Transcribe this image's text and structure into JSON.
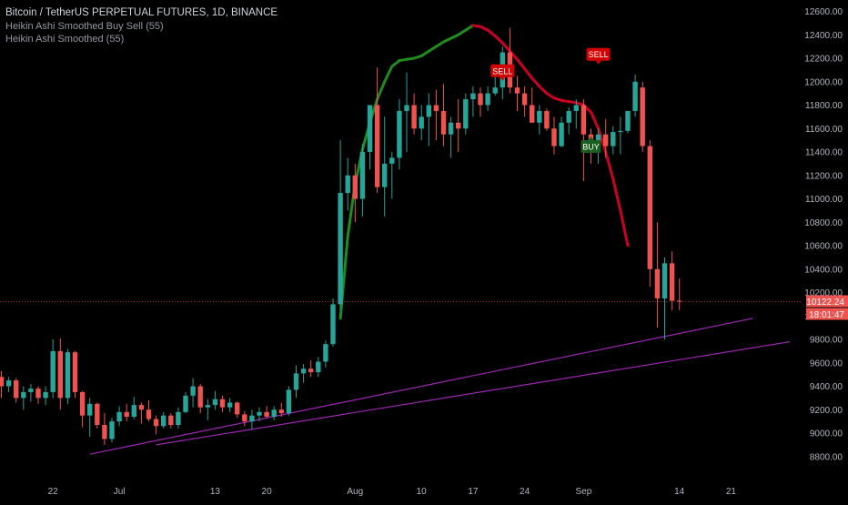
{
  "legend": {
    "title": "Bitcoin / TetherUS PERPETUAL FUTURES, 1D, BINANCE",
    "indicator1": "Heikin Ashi Smoothed Buy Sell  (55)",
    "indicator2": "Heikin Ashi Smoothed (55)"
  },
  "colors": {
    "background": "#000000",
    "up": "#26a69a",
    "down": "#ef5350",
    "ha_up": "#1e8c1e",
    "ha_down": "#cc0022",
    "trendline": "#9c27b0",
    "axis_text": "#b2b5be",
    "price_tag": "#ef5350",
    "sell_signal": "#d50000",
    "buy_signal": "#1b5e20"
  },
  "chart_data": {
    "type": "candlestick",
    "title": "Bitcoin / TetherUS PERPETUAL FUTURES, 1D, BINANCE",
    "ylim": [
      8600,
      12650
    ],
    "y_ticks": [
      8800,
      9000,
      9200,
      9400,
      9600,
      9800,
      10000,
      10200,
      10400,
      10600,
      10800,
      11000,
      11200,
      11400,
      11600,
      11800,
      12000,
      12200,
      12400,
      12600
    ],
    "y_tick_labels": [
      "8800.00",
      "9000.00",
      "9200.00",
      "9400.00",
      "9600.00",
      "9800.00",
      "10000.00",
      "10200.00",
      "10400.00",
      "10600.00",
      "10800.00",
      "11000.00",
      "11200.00",
      "11400.00",
      "11600.00",
      "11800.00",
      "12000.00",
      "12200.00",
      "12400.00",
      "12600.00"
    ],
    "x_ticks": [
      {
        "label": "22",
        "index": 7
      },
      {
        "label": "Jul",
        "index": 16
      },
      {
        "label": "13",
        "index": 29
      },
      {
        "label": "20",
        "index": 36
      },
      {
        "label": "Aug",
        "index": 48
      },
      {
        "label": "10",
        "index": 57
      },
      {
        "label": "17",
        "index": 64
      },
      {
        "label": "24",
        "index": 71
      },
      {
        "label": "Sep",
        "index": 79
      },
      {
        "label": "14",
        "index": 92
      },
      {
        "label": "21",
        "index": 99
      }
    ],
    "candles": [
      [
        9480,
        9530,
        9300,
        9400
      ],
      [
        9400,
        9480,
        9350,
        9450
      ],
      [
        9450,
        9470,
        9260,
        9300
      ],
      [
        9300,
        9400,
        9200,
        9350
      ],
      [
        9350,
        9420,
        9270,
        9380
      ],
      [
        9380,
        9400,
        9250,
        9300
      ],
      [
        9300,
        9400,
        9240,
        9350
      ],
      [
        9350,
        9800,
        9300,
        9700
      ],
      [
        9700,
        9810,
        9200,
        9300
      ],
      [
        9300,
        9720,
        9250,
        9690
      ],
      [
        9690,
        9700,
        9300,
        9350
      ],
      [
        9350,
        9360,
        9050,
        9150
      ],
      [
        9150,
        9300,
        8970,
        9250
      ],
      [
        9250,
        9260,
        9040,
        9070
      ],
      [
        9070,
        9170,
        8900,
        8950
      ],
      [
        8950,
        9130,
        8920,
        9100
      ],
      [
        9100,
        9230,
        9060,
        9180
      ],
      [
        9180,
        9250,
        9100,
        9140
      ],
      [
        9140,
        9310,
        9120,
        9240
      ],
      [
        9240,
        9260,
        9080,
        9200
      ],
      [
        9200,
        9280,
        9100,
        9120
      ],
      [
        9120,
        9150,
        8990,
        9060
      ],
      [
        9060,
        9180,
        9040,
        9150
      ],
      [
        9150,
        9170,
        9040,
        9070
      ],
      [
        9070,
        9220,
        9040,
        9180
      ],
      [
        9180,
        9350,
        9170,
        9320
      ],
      [
        9320,
        9470,
        9220,
        9400
      ],
      [
        9400,
        9420,
        9170,
        9220
      ],
      [
        9220,
        9290,
        9110,
        9240
      ],
      [
        9240,
        9360,
        9200,
        9290
      ],
      [
        9290,
        9320,
        9180,
        9220
      ],
      [
        9220,
        9300,
        9180,
        9260
      ],
      [
        9260,
        9270,
        9130,
        9160
      ],
      [
        9160,
        9190,
        9060,
        9100
      ],
      [
        9100,
        9200,
        9030,
        9150
      ],
      [
        9150,
        9220,
        9100,
        9180
      ],
      [
        9180,
        9230,
        9130,
        9140
      ],
      [
        9140,
        9230,
        9110,
        9200
      ],
      [
        9200,
        9260,
        9140,
        9170
      ],
      [
        9170,
        9400,
        9150,
        9370
      ],
      [
        9370,
        9580,
        9300,
        9510
      ],
      [
        9510,
        9590,
        9430,
        9550
      ],
      [
        9550,
        9620,
        9480,
        9520
      ],
      [
        9520,
        9650,
        9480,
        9610
      ],
      [
        9610,
        9790,
        9560,
        9760
      ],
      [
        9760,
        10150,
        9740,
        10100
      ],
      [
        10100,
        11500,
        10050,
        11050
      ],
      [
        11050,
        11350,
        10900,
        11200
      ],
      [
        11200,
        11300,
        10800,
        11000
      ],
      [
        11000,
        11470,
        10850,
        11400
      ],
      [
        11400,
        11800,
        11250,
        11800
      ],
      [
        11800,
        12120,
        11050,
        11100
      ],
      [
        11100,
        11700,
        10850,
        11300
      ],
      [
        11300,
        11400,
        11000,
        11350
      ],
      [
        11350,
        11850,
        11250,
        11750
      ],
      [
        11750,
        12080,
        11400,
        11800
      ],
      [
        11800,
        11900,
        11550,
        11600
      ],
      [
        11600,
        11800,
        11500,
        11700
      ],
      [
        11700,
        11900,
        11450,
        11800
      ],
      [
        11800,
        11930,
        11500,
        11750
      ],
      [
        11750,
        11980,
        11450,
        11550
      ],
      [
        11550,
        11700,
        11350,
        11650
      ],
      [
        11650,
        11850,
        11400,
        11600
      ],
      [
        11600,
        11900,
        11550,
        11850
      ],
      [
        11850,
        11960,
        11700,
        11900
      ],
      [
        11900,
        11950,
        11700,
        11800
      ],
      [
        11800,
        11960,
        11750,
        11900
      ],
      [
        11900,
        12050,
        11880,
        11950
      ],
      [
        11950,
        12300,
        11850,
        12250
      ],
      [
        12250,
        12460,
        11900,
        11950
      ],
      [
        11950,
        12050,
        11750,
        11900
      ],
      [
        11900,
        11960,
        11700,
        11800
      ],
      [
        11800,
        11950,
        11650,
        11650
      ],
      [
        11650,
        11800,
        11550,
        11750
      ],
      [
        11750,
        11770,
        11580,
        11600
      ],
      [
        11600,
        11700,
        11380,
        11450
      ],
      [
        11450,
        11700,
        11440,
        11650
      ],
      [
        11650,
        11780,
        11550,
        11750
      ],
      [
        11750,
        11850,
        11600,
        11800
      ],
      [
        11800,
        11850,
        11150,
        11550
      ],
      [
        11550,
        11600,
        11300,
        11400
      ],
      [
        11400,
        11600,
        11300,
        11550
      ],
      [
        11550,
        11680,
        11350,
        11450
      ],
      [
        11450,
        11620,
        11380,
        11570
      ],
      [
        11570,
        11700,
        11380,
        11580
      ],
      [
        11580,
        11750,
        11560,
        11750
      ],
      [
        11750,
        12060,
        11700,
        12000
      ],
      [
        11950,
        12000,
        11400,
        11450
      ],
      [
        11450,
        11500,
        10250,
        10400
      ],
      [
        10400,
        10800,
        9900,
        10150
      ],
      [
        10150,
        10500,
        9800,
        10450
      ],
      [
        10450,
        10550,
        10050,
        10130
      ],
      [
        10130,
        10320,
        10050,
        10122
      ]
    ],
    "ha_smoothed": [
      [
        46,
        9980
      ],
      [
        47,
        10680
      ],
      [
        48,
        11130
      ],
      [
        49,
        11420
      ],
      [
        50,
        11650
      ],
      [
        51,
        11850
      ],
      [
        52,
        12000
      ],
      [
        53,
        12130
      ],
      [
        54,
        12180
      ],
      [
        55,
        12190
      ],
      [
        56,
        12200
      ],
      [
        57,
        12220
      ],
      [
        58,
        12260
      ],
      [
        59,
        12300
      ],
      [
        60,
        12340
      ],
      [
        61,
        12370
      ],
      [
        62,
        12400
      ],
      [
        63,
        12440
      ],
      [
        64,
        12480
      ],
      [
        65,
        12470
      ],
      [
        66,
        12440
      ],
      [
        67,
        12390
      ],
      [
        68,
        12330
      ],
      [
        69,
        12260
      ],
      [
        70,
        12190
      ],
      [
        71,
        12110
      ],
      [
        72,
        12030
      ],
      [
        73,
        11960
      ],
      [
        74,
        11900
      ],
      [
        75,
        11860
      ],
      [
        76,
        11840
      ],
      [
        77,
        11830
      ],
      [
        78,
        11820
      ],
      [
        79,
        11800
      ],
      [
        80,
        11740
      ],
      [
        81,
        11600
      ],
      [
        82,
        11400
      ],
      [
        83,
        11170
      ],
      [
        84,
        10900
      ],
      [
        85,
        10600
      ]
    ],
    "ha_smoothed_color_change_index": 64,
    "trendlines": [
      {
        "from": [
          12,
          8820
        ],
        "to": [
          102,
          9980
        ]
      },
      {
        "from": [
          21,
          8900
        ],
        "to": [
          107,
          9780
        ]
      }
    ],
    "signals": [
      {
        "label": "SELL",
        "index": 68,
        "price": 12000,
        "position": "above"
      },
      {
        "label": "SELL",
        "index": 81,
        "price": 12140,
        "position": "above"
      },
      {
        "label": "BUY",
        "index": 80,
        "price": 11540,
        "position": "below"
      }
    ],
    "last_price": 10122.24,
    "last_price_label": "10122.24",
    "countdown_label": "18:01:47"
  }
}
